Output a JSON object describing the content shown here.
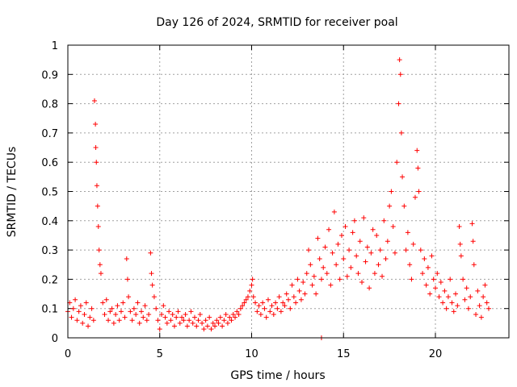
{
  "chart_data": {
    "type": "scatter",
    "title": "Day 126 of 2024, SRMTID for receiver poal",
    "xlabel": "GPS time / hours",
    "ylabel": "SRMTID / TECUs",
    "xlim": [
      0,
      24
    ],
    "ylim": [
      0,
      1
    ],
    "x_ticks": [
      0,
      5,
      10,
      15,
      20
    ],
    "x_tick_labels": [
      "0",
      "5",
      "10",
      "15",
      "20"
    ],
    "y_ticks": [
      0,
      0.1,
      0.2,
      0.3,
      0.4,
      0.5,
      0.6,
      0.7,
      0.8,
      0.9,
      1
    ],
    "y_tick_labels": [
      "0",
      "0.1",
      "0.2",
      "0.3",
      "0.4",
      "0.5",
      "0.6",
      "0.7",
      "0.8",
      "0.9",
      "1"
    ],
    "grid": true,
    "marker": "+",
    "color": "#ff0000",
    "series": [
      {
        "name": "SRMTID",
        "points": [
          [
            0.0,
            0.09
          ],
          [
            0.1,
            0.12
          ],
          [
            0.2,
            0.07
          ],
          [
            0.3,
            0.1
          ],
          [
            0.4,
            0.13
          ],
          [
            0.5,
            0.06
          ],
          [
            0.6,
            0.09
          ],
          [
            0.7,
            0.11
          ],
          [
            0.8,
            0.05
          ],
          [
            0.9,
            0.08
          ],
          [
            1.0,
            0.12
          ],
          [
            1.1,
            0.04
          ],
          [
            1.2,
            0.07
          ],
          [
            1.3,
            0.1
          ],
          [
            1.4,
            0.06
          ],
          [
            1.45,
            0.81
          ],
          [
            1.5,
            0.73
          ],
          [
            1.52,
            0.65
          ],
          [
            1.55,
            0.6
          ],
          [
            1.58,
            0.52
          ],
          [
            1.62,
            0.45
          ],
          [
            1.66,
            0.38
          ],
          [
            1.7,
            0.3
          ],
          [
            1.75,
            0.25
          ],
          [
            1.8,
            0.22
          ],
          [
            1.9,
            0.12
          ],
          [
            2.0,
            0.08
          ],
          [
            2.1,
            0.13
          ],
          [
            2.2,
            0.06
          ],
          [
            2.3,
            0.09
          ],
          [
            2.4,
            0.1
          ],
          [
            2.5,
            0.05
          ],
          [
            2.6,
            0.08
          ],
          [
            2.7,
            0.11
          ],
          [
            2.8,
            0.06
          ],
          [
            2.9,
            0.09
          ],
          [
            3.0,
            0.12
          ],
          [
            3.1,
            0.07
          ],
          [
            3.2,
            0.27
          ],
          [
            3.25,
            0.2
          ],
          [
            3.3,
            0.14
          ],
          [
            3.4,
            0.09
          ],
          [
            3.5,
            0.06
          ],
          [
            3.6,
            0.1
          ],
          [
            3.7,
            0.08
          ],
          [
            3.8,
            0.12
          ],
          [
            3.9,
            0.05
          ],
          [
            4.0,
            0.09
          ],
          [
            4.1,
            0.07
          ],
          [
            4.2,
            0.11
          ],
          [
            4.3,
            0.06
          ],
          [
            4.4,
            0.08
          ],
          [
            4.5,
            0.29
          ],
          [
            4.55,
            0.22
          ],
          [
            4.6,
            0.18
          ],
          [
            4.7,
            0.14
          ],
          [
            4.8,
            0.1
          ],
          [
            4.9,
            0.06
          ],
          [
            5.0,
            0.03
          ],
          [
            5.1,
            0.08
          ],
          [
            5.2,
            0.11
          ],
          [
            5.3,
            0.07
          ],
          [
            5.4,
            0.05
          ],
          [
            5.5,
            0.09
          ],
          [
            5.6,
            0.06
          ],
          [
            5.7,
            0.08
          ],
          [
            5.8,
            0.04
          ],
          [
            5.9,
            0.07
          ],
          [
            6.0,
            0.09
          ],
          [
            6.1,
            0.05
          ],
          [
            6.2,
            0.07
          ],
          [
            6.3,
            0.06
          ],
          [
            6.4,
            0.08
          ],
          [
            6.5,
            0.04
          ],
          [
            6.6,
            0.06
          ],
          [
            6.7,
            0.09
          ],
          [
            6.8,
            0.05
          ],
          [
            6.9,
            0.07
          ],
          [
            7.0,
            0.04
          ],
          [
            7.1,
            0.06
          ],
          [
            7.2,
            0.08
          ],
          [
            7.3,
            0.05
          ],
          [
            7.4,
            0.03
          ],
          [
            7.5,
            0.06
          ],
          [
            7.6,
            0.04
          ],
          [
            7.7,
            0.07
          ],
          [
            7.8,
            0.03
          ],
          [
            7.9,
            0.05
          ],
          [
            8.0,
            0.04
          ],
          [
            8.1,
            0.06
          ],
          [
            8.2,
            0.05
          ],
          [
            8.3,
            0.07
          ],
          [
            8.4,
            0.04
          ],
          [
            8.5,
            0.06
          ],
          [
            8.6,
            0.08
          ],
          [
            8.7,
            0.05
          ],
          [
            8.8,
            0.07
          ],
          [
            8.9,
            0.06
          ],
          [
            9.0,
            0.08
          ],
          [
            9.1,
            0.07
          ],
          [
            9.2,
            0.09
          ],
          [
            9.3,
            0.08
          ],
          [
            9.4,
            0.1
          ],
          [
            9.5,
            0.11
          ],
          [
            9.6,
            0.12
          ],
          [
            9.7,
            0.13
          ],
          [
            9.8,
            0.14
          ],
          [
            9.9,
            0.16
          ],
          [
            10.0,
            0.18
          ],
          [
            10.05,
            0.2
          ],
          [
            10.1,
            0.14
          ],
          [
            10.2,
            0.12
          ],
          [
            10.3,
            0.09
          ],
          [
            10.4,
            0.11
          ],
          [
            10.5,
            0.08
          ],
          [
            10.6,
            0.12
          ],
          [
            10.7,
            0.1
          ],
          [
            10.8,
            0.07
          ],
          [
            10.9,
            0.13
          ],
          [
            11.0,
            0.09
          ],
          [
            11.1,
            0.11
          ],
          [
            11.2,
            0.08
          ],
          [
            11.3,
            0.12
          ],
          [
            11.4,
            0.1
          ],
          [
            11.5,
            0.14
          ],
          [
            11.6,
            0.09
          ],
          [
            11.7,
            0.12
          ],
          [
            11.8,
            0.11
          ],
          [
            11.9,
            0.15
          ],
          [
            12.0,
            0.13
          ],
          [
            12.1,
            0.1
          ],
          [
            12.2,
            0.18
          ],
          [
            12.3,
            0.14
          ],
          [
            12.4,
            0.12
          ],
          [
            12.5,
            0.2
          ],
          [
            12.6,
            0.16
          ],
          [
            12.7,
            0.13
          ],
          [
            12.8,
            0.19
          ],
          [
            12.9,
            0.15
          ],
          [
            13.0,
            0.22
          ],
          [
            13.1,
            0.3
          ],
          [
            13.2,
            0.25
          ],
          [
            13.3,
            0.18
          ],
          [
            13.4,
            0.21
          ],
          [
            13.5,
            0.15
          ],
          [
            13.6,
            0.34
          ],
          [
            13.7,
            0.27
          ],
          [
            13.8,
            0.2
          ],
          [
            13.9,
            0.24
          ],
          [
            14.0,
            0.31
          ],
          [
            14.1,
            0.22
          ],
          [
            14.2,
            0.37
          ],
          [
            14.3,
            0.18
          ],
          [
            14.4,
            0.29
          ],
          [
            14.5,
            0.43
          ],
          [
            14.6,
            0.25
          ],
          [
            14.7,
            0.32
          ],
          [
            14.8,
            0.2
          ],
          [
            14.9,
            0.35
          ],
          [
            15.0,
            0.27
          ],
          [
            15.1,
            0.38
          ],
          [
            15.2,
            0.21
          ],
          [
            15.3,
            0.3
          ],
          [
            15.4,
            0.24
          ],
          [
            15.5,
            0.36
          ],
          [
            15.6,
            0.4
          ],
          [
            15.7,
            0.28
          ],
          [
            15.8,
            0.22
          ],
          [
            15.9,
            0.33
          ],
          [
            16.0,
            0.19
          ],
          [
            16.1,
            0.41
          ],
          [
            16.2,
            0.26
          ],
          [
            16.3,
            0.31
          ],
          [
            16.4,
            0.17
          ],
          [
            16.5,
            0.29
          ],
          [
            16.6,
            0.37
          ],
          [
            16.7,
            0.22
          ],
          [
            16.8,
            0.35
          ],
          [
            16.9,
            0.25
          ],
          [
            17.0,
            0.3
          ],
          [
            17.1,
            0.21
          ],
          [
            17.2,
            0.4
          ],
          [
            17.3,
            0.27
          ],
          [
            17.4,
            0.33
          ],
          [
            17.5,
            0.45
          ],
          [
            17.6,
            0.5
          ],
          [
            17.7,
            0.38
          ],
          [
            17.8,
            0.29
          ],
          [
            17.9,
            0.6
          ],
          [
            18.0,
            0.8
          ],
          [
            18.05,
            0.95
          ],
          [
            18.1,
            0.9
          ],
          [
            18.15,
            0.7
          ],
          [
            18.2,
            0.55
          ],
          [
            18.3,
            0.45
          ],
          [
            18.4,
            0.3
          ],
          [
            18.5,
            0.36
          ],
          [
            18.6,
            0.25
          ],
          [
            18.7,
            0.2
          ],
          [
            18.8,
            0.32
          ],
          [
            18.9,
            0.48
          ],
          [
            19.0,
            0.64
          ],
          [
            19.05,
            0.58
          ],
          [
            19.1,
            0.5
          ],
          [
            19.2,
            0.3
          ],
          [
            19.3,
            0.22
          ],
          [
            19.4,
            0.27
          ],
          [
            19.5,
            0.18
          ],
          [
            19.6,
            0.24
          ],
          [
            19.7,
            0.15
          ],
          [
            19.8,
            0.28
          ],
          [
            19.9,
            0.2
          ],
          [
            20.0,
            0.17
          ],
          [
            20.1,
            0.22
          ],
          [
            20.2,
            0.14
          ],
          [
            20.3,
            0.19
          ],
          [
            20.4,
            0.12
          ],
          [
            20.5,
            0.16
          ],
          [
            20.6,
            0.1
          ],
          [
            20.7,
            0.14
          ],
          [
            20.8,
            0.2
          ],
          [
            20.9,
            0.12
          ],
          [
            21.0,
            0.09
          ],
          [
            21.1,
            0.15
          ],
          [
            21.2,
            0.11
          ],
          [
            21.3,
            0.38
          ],
          [
            21.35,
            0.32
          ],
          [
            21.4,
            0.28
          ],
          [
            21.5,
            0.2
          ],
          [
            21.6,
            0.13
          ],
          [
            21.7,
            0.17
          ],
          [
            21.8,
            0.1
          ],
          [
            21.9,
            0.14
          ],
          [
            22.0,
            0.39
          ],
          [
            22.05,
            0.33
          ],
          [
            22.1,
            0.25
          ],
          [
            22.2,
            0.08
          ],
          [
            22.3,
            0.16
          ],
          [
            22.4,
            0.11
          ],
          [
            22.5,
            0.07
          ],
          [
            22.6,
            0.14
          ],
          [
            22.7,
            0.18
          ],
          [
            22.8,
            0.12
          ],
          [
            22.9,
            0.1
          ],
          [
            13.8,
            0.0
          ]
        ]
      }
    ]
  }
}
